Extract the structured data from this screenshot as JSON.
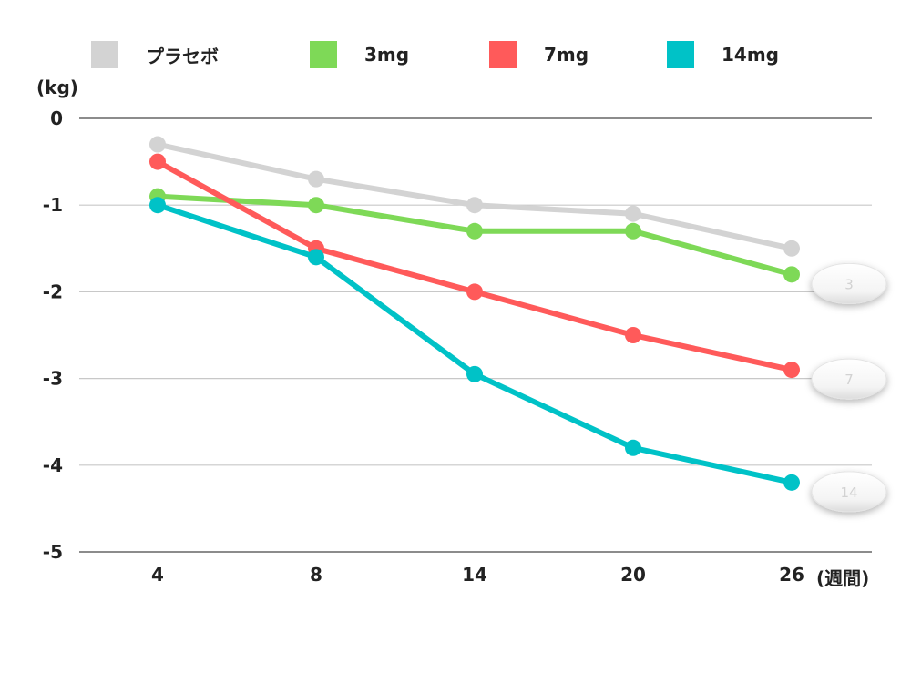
{
  "chart_data": {
    "type": "line",
    "x": [
      "4",
      "8",
      "14",
      "20",
      "26"
    ],
    "xlabel": "(週間)",
    "ylabel": "(kg)",
    "ylim": [
      -5,
      0
    ],
    "yticks": [
      "0",
      "-1",
      "-2",
      "-3",
      "-4",
      "-5"
    ],
    "grid": true,
    "legend_position": "top",
    "series": [
      {
        "name": "プラセボ",
        "color": "#d3d3d3",
        "values": [
          -0.3,
          -0.7,
          -1.0,
          -1.1,
          -1.5
        ]
      },
      {
        "name": "3mg",
        "color": "#7ed957",
        "values": [
          -0.9,
          -1.0,
          -1.3,
          -1.3,
          -1.8
        ],
        "pill_label": "3"
      },
      {
        "name": "7mg",
        "color": "#ff5a5a",
        "values": [
          -0.5,
          -1.5,
          -2.0,
          -2.5,
          -2.9
        ],
        "pill_label": "7"
      },
      {
        "name": "14mg",
        "color": "#00c2c7",
        "values": [
          -1.0,
          -1.6,
          -2.95,
          -3.8,
          -4.2
        ],
        "pill_label": "14"
      }
    ]
  }
}
